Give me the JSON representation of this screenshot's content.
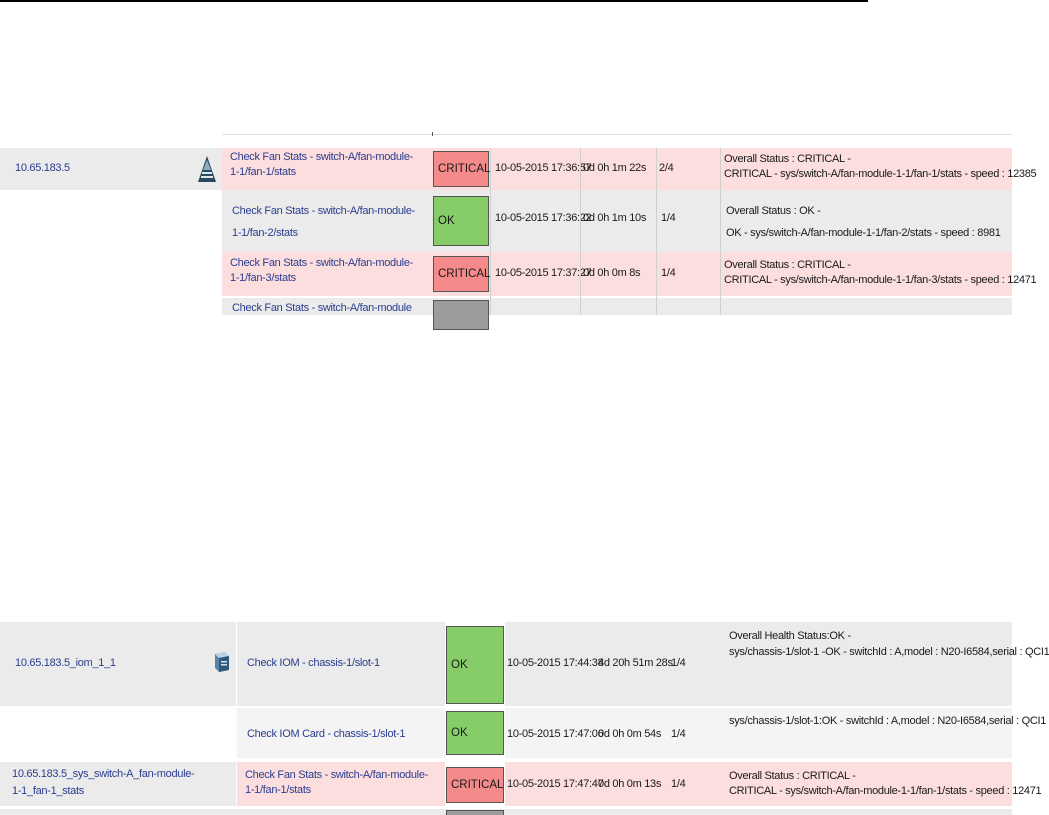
{
  "table1": {
    "host": "10.65.183.5",
    "rows": [
      {
        "service_line1": "Check Fan Stats - switch-A/fan-module-",
        "service_line2": "1-1/fan-1/stats",
        "status": "CRITICAL",
        "last_check": "10-05-2015 17:36:57",
        "duration": "0d 0h 1m 22s",
        "attempt": "2/4",
        "info_line1": "Overall Status : CRITICAL -",
        "info_line2": "CRITICAL - sys/switch-A/fan-module-1-1/fan-1/stats - speed : 12385"
      },
      {
        "service_line1": "Check Fan Stats - switch-A/fan-module-",
        "service_line2": "1-1/fan-2/stats",
        "status": "OK",
        "last_check": "10-05-2015 17:36:22",
        "duration": "0d 0h 1m 10s",
        "attempt": "1/4",
        "info_line1": "Overall Status : OK -",
        "info_line2": "OK - sys/switch-A/fan-module-1-1/fan-2/stats - speed : 8981"
      },
      {
        "service_line1": "Check Fan Stats - switch-A/fan-module-",
        "service_line2": "1-1/fan-3/stats",
        "status": "CRITICAL",
        "last_check": "10-05-2015 17:37:27",
        "duration": "0d 0h 0m 8s",
        "attempt": "1/4",
        "info_line1": "Overall Status : CRITICAL -",
        "info_line2": "CRITICAL - sys/switch-A/fan-module-1-1/fan-3/stats - speed : 12471"
      },
      {
        "service_line1": "Check Fan Stats - switch-A/fan-module"
      }
    ]
  },
  "table2": {
    "rows": [
      {
        "host": "10.65.183.5_iom_1_1",
        "service": "Check IOM - chassis-1/slot-1",
        "status": "OK",
        "last_check": "10-05-2015 17:44:38",
        "duration": "4d 20h 51m 28s",
        "attempt": "1/4",
        "info_line1": "Overall Health Status:OK -",
        "info_line2": "sys/chassis-1/slot-1 -OK - switchId : A,model : N20-I6584,serial : QCI1"
      },
      {
        "host": "",
        "service": "Check IOM Card - chassis-1/slot-1",
        "status": "OK",
        "last_check": "10-05-2015 17:47:06",
        "duration": "0d 0h 0m 54s",
        "attempt": "1/4",
        "info_line1": "sys/chassis-1/slot-1:OK - switchId : A,model : N20-I6584,serial : QCI1"
      },
      {
        "host_line1": "10.65.183.5_sys_switch-A_fan-module-",
        "host_line2": "1-1_fan-1_stats",
        "service_line1": "Check Fan Stats - switch-A/fan-module-",
        "service_line2": "1-1/fan-1/stats",
        "status": "CRITICAL",
        "last_check": "10-05-2015 17:47:47",
        "duration": "0d 0h 0m 13s",
        "attempt": "1/4",
        "info_line1": "Overall Status : CRITICAL -",
        "info_line2": "CRITICAL - sys/switch-A/fan-module-1-1/fan-1/stats - speed : 12471"
      }
    ]
  },
  "icons": {
    "host1": "server-icon",
    "host2": "module-icon"
  }
}
